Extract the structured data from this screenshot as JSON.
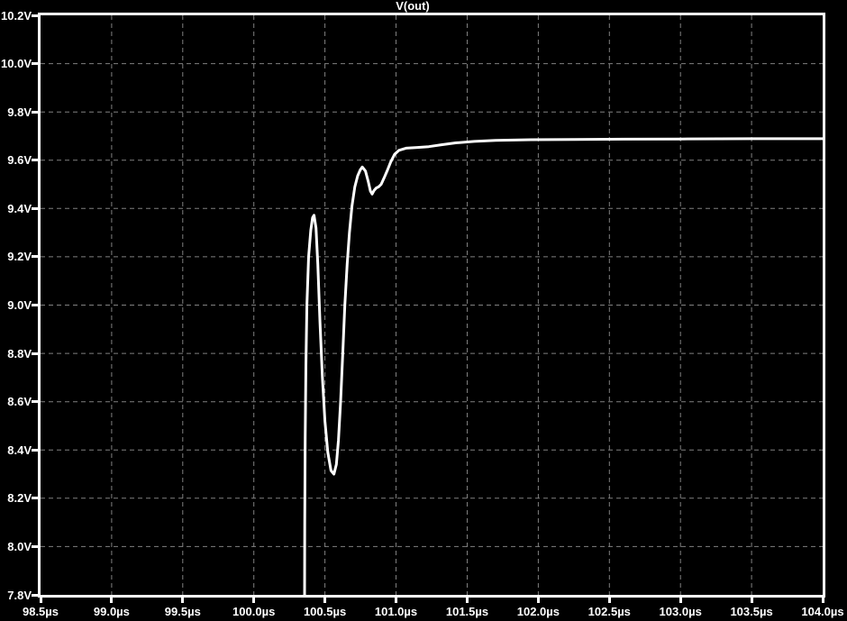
{
  "window": {
    "background_color": "#000000"
  },
  "chart_data": {
    "type": "line",
    "title": "V(out)",
    "title_color": "#ffffff",
    "axis_color": "#ffffff",
    "grid_color": "#808080",
    "grid_style": "dashed",
    "xlim": [
      98.5,
      104.0
    ],
    "ylim": [
      7.8,
      10.2
    ],
    "x_unit": "µs",
    "y_unit": "V",
    "x_ticks": {
      "values": [
        98.5,
        99.0,
        99.5,
        100.0,
        100.5,
        101.0,
        101.5,
        102.0,
        102.5,
        103.0,
        103.5,
        104.0
      ],
      "labels": [
        "98.5µs",
        "99.0µs",
        "99.5µs",
        "100.0µs",
        "100.5µs",
        "101.0µs",
        "101.5µs",
        "102.0µs",
        "102.5µs",
        "103.0µs",
        "103.5µs",
        "104.0µs"
      ]
    },
    "y_ticks": {
      "values": [
        10.2,
        10.0,
        9.8,
        9.6,
        9.4,
        9.2,
        9.0,
        8.8,
        8.6,
        8.4,
        8.2,
        8.0,
        7.8
      ],
      "labels": [
        "10.2V",
        "10.0V",
        "9.8V",
        "9.6V",
        "9.4V",
        "9.2V",
        "9.0V",
        "8.8V",
        "8.6V",
        "8.4V",
        "8.2V",
        "8.0V",
        "7.8V"
      ]
    },
    "series": [
      {
        "name": "V(out)",
        "color": "#ffffff",
        "line_width": 3,
        "points": [
          [
            100.356,
            7.6
          ],
          [
            100.358,
            8.1
          ],
          [
            100.361,
            8.45
          ],
          [
            100.366,
            8.75
          ],
          [
            100.373,
            9.0
          ],
          [
            100.385,
            9.2
          ],
          [
            100.4,
            9.31
          ],
          [
            100.413,
            9.362
          ],
          [
            100.423,
            9.372
          ],
          [
            100.437,
            9.32
          ],
          [
            100.45,
            9.17
          ],
          [
            100.465,
            8.93
          ],
          [
            100.482,
            8.7
          ],
          [
            100.5,
            8.52
          ],
          [
            100.52,
            8.39
          ],
          [
            100.542,
            8.315
          ],
          [
            100.563,
            8.3
          ],
          [
            100.58,
            8.34
          ],
          [
            100.595,
            8.44
          ],
          [
            100.61,
            8.6
          ],
          [
            100.625,
            8.8
          ],
          [
            100.64,
            9.0
          ],
          [
            100.656,
            9.17
          ],
          [
            100.672,
            9.3
          ],
          [
            100.69,
            9.41
          ],
          [
            100.71,
            9.49
          ],
          [
            100.73,
            9.535
          ],
          [
            100.748,
            9.56
          ],
          [
            100.763,
            9.572
          ],
          [
            100.785,
            9.555
          ],
          [
            100.805,
            9.51
          ],
          [
            100.82,
            9.472
          ],
          [
            100.832,
            9.46
          ],
          [
            100.846,
            9.475
          ],
          [
            100.86,
            9.485
          ],
          [
            100.878,
            9.49
          ],
          [
            100.895,
            9.5
          ],
          [
            100.915,
            9.525
          ],
          [
            100.94,
            9.56
          ],
          [
            100.962,
            9.592
          ],
          [
            100.99,
            9.625
          ],
          [
            101.02,
            9.641
          ],
          [
            101.07,
            9.65
          ],
          [
            101.15,
            9.653
          ],
          [
            101.23,
            9.656
          ],
          [
            101.32,
            9.664
          ],
          [
            101.42,
            9.672
          ],
          [
            101.55,
            9.678
          ],
          [
            101.7,
            9.682
          ],
          [
            101.95,
            9.685
          ],
          [
            102.25,
            9.686
          ],
          [
            102.6,
            9.687
          ],
          [
            103.0,
            9.688
          ],
          [
            103.5,
            9.689
          ],
          [
            104.0,
            9.689
          ]
        ]
      }
    ]
  }
}
